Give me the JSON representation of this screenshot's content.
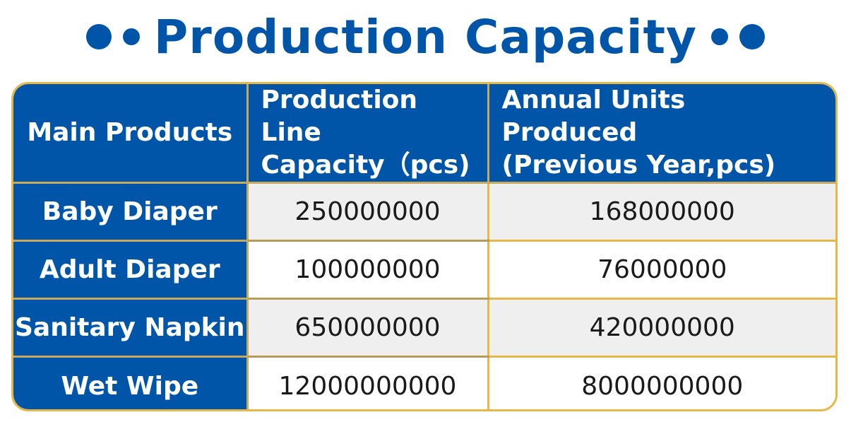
{
  "header": {
    "title": "Production Capacity"
  },
  "chart_data": {
    "type": "table",
    "title": "Production Capacity",
    "columns": [
      "Main Products",
      "Production Line Capacity（pcs)",
      "Annual Units Produced (Previous Year,pcs)"
    ],
    "column_lines": [
      [
        "Main Products"
      ],
      [
        "Production Line",
        "Capacity（pcs)"
      ],
      [
        "Annual Units Produced",
        "(Previous Year,pcs)"
      ]
    ],
    "rows": [
      {
        "product": "Baby Diaper",
        "capacity": "250000000",
        "annual": "168000000"
      },
      {
        "product": "Adult Diaper",
        "capacity": "100000000",
        "annual": "76000000"
      },
      {
        "product": "Sanitary Napkin",
        "capacity": "650000000",
        "annual": "420000000"
      },
      {
        "product": "Wet Wipe",
        "capacity": "12000000000",
        "annual": "8000000000"
      }
    ]
  },
  "colors": {
    "brand_blue": "#0055A8",
    "gold_border": "#E6B84A",
    "row_shade": "#EFEFEF"
  }
}
